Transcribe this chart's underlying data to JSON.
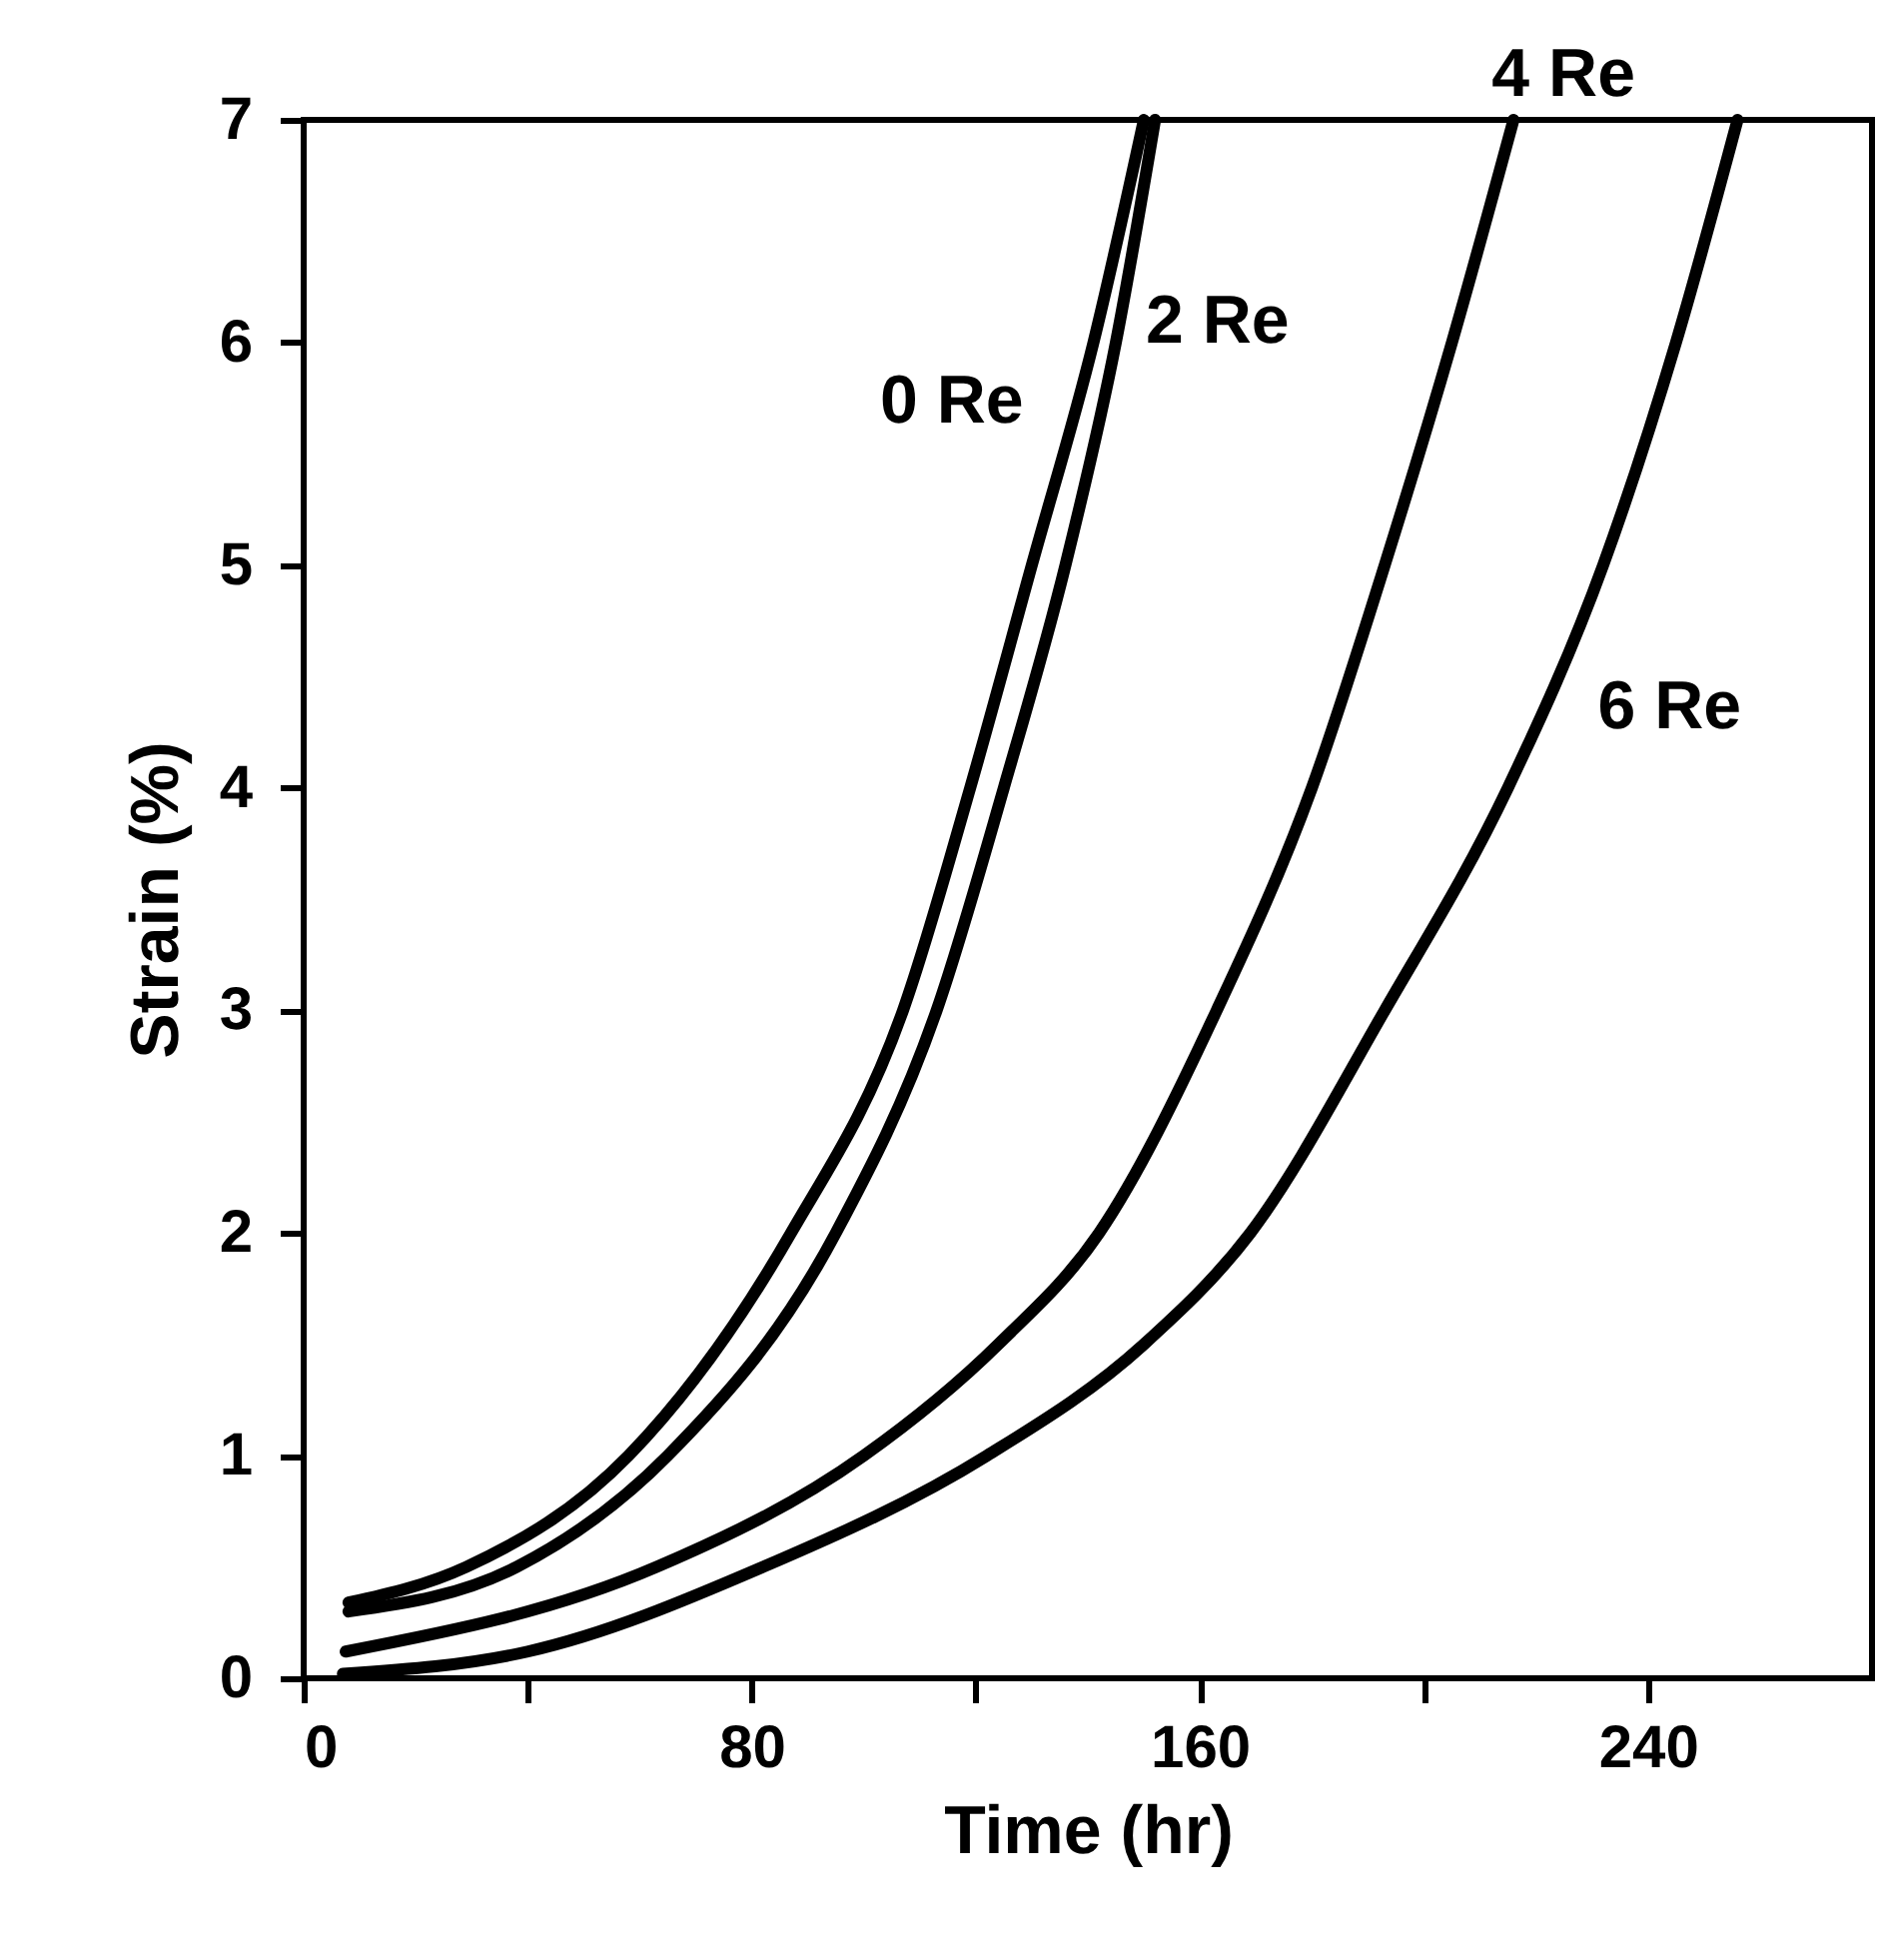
{
  "chart_data": {
    "type": "line",
    "xlabel": "Time (hr)",
    "ylabel": "Strain (%)",
    "xlim": [
      0,
      280
    ],
    "ylim": [
      0,
      7
    ],
    "xticks": [
      0,
      {
        "value": 40,
        "label": null
      },
      80,
      {
        "value": 120,
        "label": null
      },
      160,
      {
        "value": 200,
        "label": null
      },
      240
    ],
    "yticks": [
      0,
      1,
      2,
      3,
      4,
      5,
      6,
      7
    ],
    "grid": false,
    "legend": false,
    "marker": "none",
    "line_style": "solid",
    "series": [
      {
        "name": "0 Re",
        "color": "#000000",
        "x": [
          8,
          29,
          58,
          87,
          107,
          119,
          130,
          141,
          150
        ],
        "values": [
          0.34,
          0.5,
          1,
          2,
          3,
          4,
          5,
          6,
          7
        ]
      },
      {
        "name": "2 Re",
        "color": "#000000",
        "x": [
          8,
          38,
          65,
          95,
          113,
          125,
          136,
          145,
          152
        ],
        "values": [
          0.3,
          0.5,
          1,
          2,
          3,
          4,
          5,
          6,
          7
        ]
      },
      {
        "name": "4 Re",
        "color": "#000000",
        "x": [
          7.5,
          63,
          100,
          124,
          142,
          163,
          180,
          193,
          205,
          216
        ],
        "values": [
          0.12,
          0.5,
          1,
          1.5,
          2,
          3,
          4,
          5,
          6,
          7
        ]
      },
      {
        "name": "6 Re",
        "color": "#000000",
        "x": [
          7,
          40,
          82,
          122,
          150,
          169,
          193,
          215,
          232,
          245,
          256
        ],
        "values": [
          0.02,
          0.12,
          0.5,
          1,
          1.5,
          2,
          3,
          4,
          5,
          6,
          7
        ]
      }
    ]
  }
}
